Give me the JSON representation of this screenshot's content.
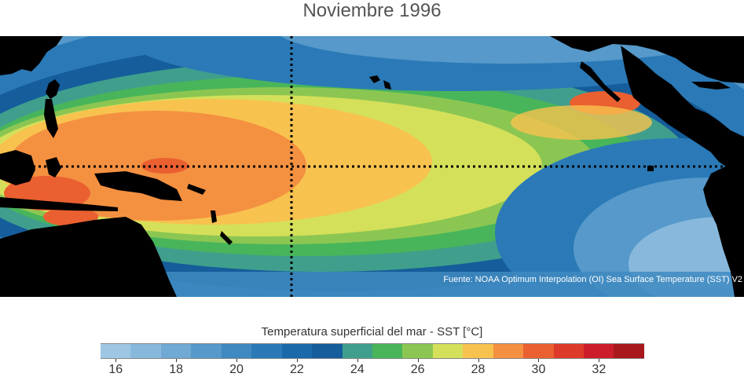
{
  "title": "Noviembre 1996",
  "source": "Fuente: NOAA Optimum Interpolation (OI) Sea Surface Temperature (SST) V2",
  "legend": {
    "title": "Temperatura superficial del mar - SST  [°C]",
    "bins": [
      {
        "lo": 15,
        "hi": 16,
        "color": "#9ec7e4"
      },
      {
        "lo": 16,
        "hi": 17,
        "color": "#88b9dd"
      },
      {
        "lo": 17,
        "hi": 18,
        "color": "#6fa9d4"
      },
      {
        "lo": 18,
        "hi": 19,
        "color": "#5699ca"
      },
      {
        "lo": 19,
        "hi": 20,
        "color": "#3f89c1"
      },
      {
        "lo": 20,
        "hi": 21,
        "color": "#2b7ab7"
      },
      {
        "lo": 21,
        "hi": 22,
        "color": "#1c69aa"
      },
      {
        "lo": 22,
        "hi": 23,
        "color": "#155d9b"
      },
      {
        "lo": 23,
        "hi": 24,
        "color": "#3f9f8c"
      },
      {
        "lo": 24,
        "hi": 25,
        "color": "#48b55a"
      },
      {
        "lo": 25,
        "hi": 26,
        "color": "#8cc652"
      },
      {
        "lo": 26,
        "hi": 27,
        "color": "#d5e05a"
      },
      {
        "lo": 27,
        "hi": 28,
        "color": "#f8c24f"
      },
      {
        "lo": 28,
        "hi": 29,
        "color": "#f49141"
      },
      {
        "lo": 29,
        "hi": 30,
        "color": "#ea6030"
      },
      {
        "lo": 30,
        "hi": 31,
        "color": "#de3a2a"
      },
      {
        "lo": 31,
        "hi": 32,
        "color": "#cc1e2a"
      },
      {
        "lo": 32,
        "hi": 33,
        "color": "#a8181d"
      }
    ],
    "tick_values": [
      16,
      18,
      20,
      22,
      24,
      26,
      28,
      30,
      32
    ],
    "tick_labels": [
      "16",
      "18",
      "20",
      "22",
      "24",
      "26",
      "28",
      "30",
      "32"
    ]
  },
  "land_color": "#000000"
}
